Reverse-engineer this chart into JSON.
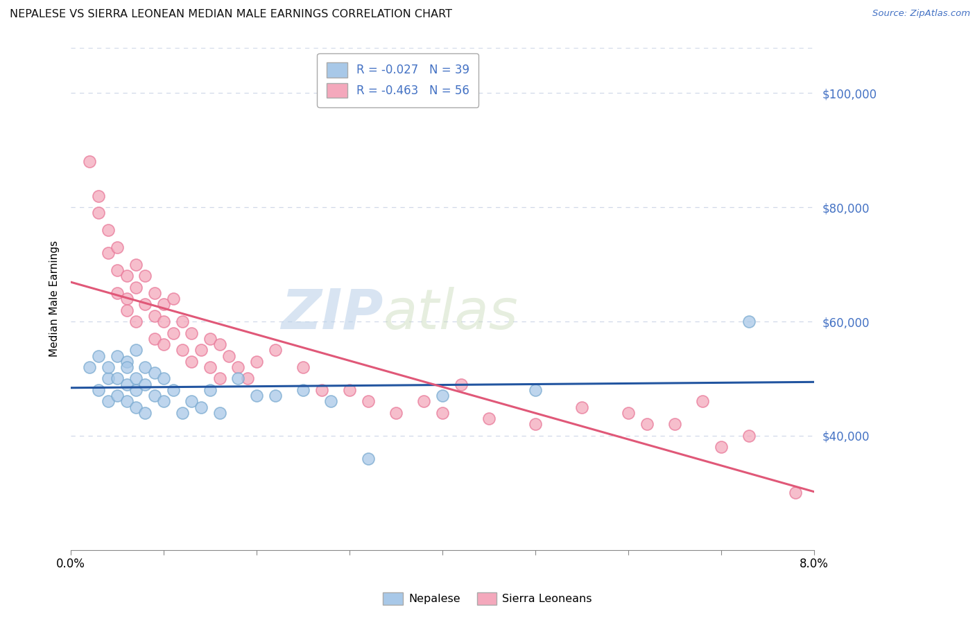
{
  "title": "NEPALESE VS SIERRA LEONEAN MEDIAN MALE EARNINGS CORRELATION CHART",
  "source": "Source: ZipAtlas.com",
  "ylabel": "Median Male Earnings",
  "xlim": [
    0.0,
    0.08
  ],
  "ylim": [
    20000,
    108000
  ],
  "yticks": [
    40000,
    60000,
    80000,
    100000
  ],
  "ytick_labels": [
    "$40,000",
    "$60,000",
    "$80,000",
    "$100,000"
  ],
  "r_nepalese": "-0.027",
  "n_nepalese": "39",
  "r_sierra": "-0.463",
  "n_sierra": "56",
  "nepalese_color": "#a8c8e8",
  "sierra_color": "#f4a8bc",
  "nepalese_edge_color": "#7aaad0",
  "sierra_edge_color": "#e87898",
  "nepalese_line_color": "#2255a0",
  "sierra_line_color": "#e05878",
  "nepalese_x": [
    0.002,
    0.003,
    0.003,
    0.004,
    0.004,
    0.004,
    0.005,
    0.005,
    0.005,
    0.006,
    0.006,
    0.006,
    0.006,
    0.007,
    0.007,
    0.007,
    0.007,
    0.008,
    0.008,
    0.008,
    0.009,
    0.009,
    0.01,
    0.01,
    0.011,
    0.012,
    0.013,
    0.014,
    0.015,
    0.016,
    0.018,
    0.02,
    0.022,
    0.025,
    0.028,
    0.032,
    0.04,
    0.05,
    0.073
  ],
  "nepalese_y": [
    52000,
    48000,
    54000,
    50000,
    46000,
    52000,
    54000,
    47000,
    50000,
    53000,
    49000,
    52000,
    46000,
    55000,
    50000,
    48000,
    45000,
    52000,
    49000,
    44000,
    51000,
    47000,
    50000,
    46000,
    48000,
    44000,
    46000,
    45000,
    48000,
    44000,
    50000,
    47000,
    47000,
    48000,
    46000,
    36000,
    47000,
    48000,
    60000
  ],
  "sierra_x": [
    0.002,
    0.003,
    0.003,
    0.004,
    0.004,
    0.005,
    0.005,
    0.005,
    0.006,
    0.006,
    0.006,
    0.007,
    0.007,
    0.007,
    0.008,
    0.008,
    0.009,
    0.009,
    0.009,
    0.01,
    0.01,
    0.01,
    0.011,
    0.011,
    0.012,
    0.012,
    0.013,
    0.013,
    0.014,
    0.015,
    0.015,
    0.016,
    0.016,
    0.017,
    0.018,
    0.019,
    0.02,
    0.022,
    0.025,
    0.027,
    0.03,
    0.032,
    0.035,
    0.038,
    0.04,
    0.042,
    0.045,
    0.05,
    0.055,
    0.06,
    0.062,
    0.065,
    0.068,
    0.07,
    0.073,
    0.078
  ],
  "sierra_y": [
    88000,
    82000,
    79000,
    76000,
    72000,
    73000,
    69000,
    65000,
    68000,
    64000,
    62000,
    70000,
    66000,
    60000,
    68000,
    63000,
    65000,
    61000,
    57000,
    63000,
    60000,
    56000,
    64000,
    58000,
    60000,
    55000,
    58000,
    53000,
    55000,
    57000,
    52000,
    56000,
    50000,
    54000,
    52000,
    50000,
    53000,
    55000,
    52000,
    48000,
    48000,
    46000,
    44000,
    46000,
    44000,
    49000,
    43000,
    42000,
    45000,
    44000,
    42000,
    42000,
    46000,
    38000,
    40000,
    30000
  ],
  "watermark_zip": "ZIP",
  "watermark_atlas": "atlas",
  "background_color": "#ffffff",
  "grid_color": "#d0d8e8",
  "legend_edgecolor": "#aaaaaa"
}
